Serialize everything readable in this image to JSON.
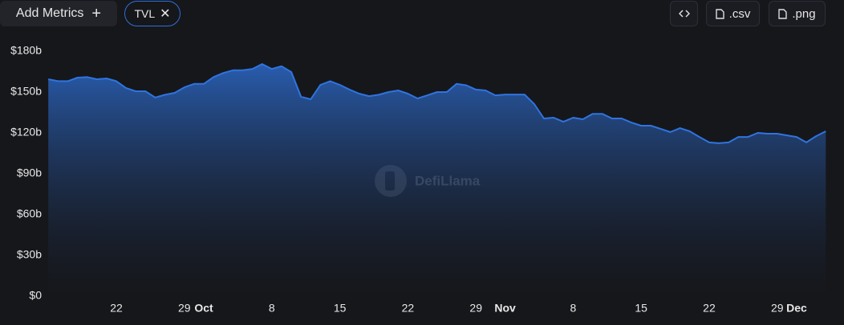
{
  "toolbar": {
    "add_metrics": "Add Metrics",
    "metric_chip": "TVL",
    "csv": ".csv",
    "png": ".png"
  },
  "watermark": "DefiLlama",
  "chart_data": {
    "type": "area",
    "categories": [
      null,
      null,
      null,
      null,
      null,
      null,
      null,
      "22",
      null,
      null,
      null,
      null,
      null,
      null,
      "29",
      null,
      "Oct",
      null,
      null,
      null,
      null,
      null,
      null,
      "8",
      null,
      null,
      null,
      null,
      null,
      null,
      "15",
      null,
      null,
      null,
      null,
      null,
      null,
      "22",
      null,
      null,
      null,
      null,
      null,
      null,
      "29",
      null,
      null,
      "Nov",
      null,
      null,
      null,
      null,
      null,
      null,
      "8",
      null,
      null,
      null,
      null,
      null,
      null,
      "15",
      null,
      null,
      null,
      null,
      null,
      null,
      "22",
      null,
      null,
      null,
      null,
      null,
      null,
      "29",
      null,
      "Dec",
      null,
      null,
      null
    ],
    "series": [
      {
        "name": "TVL",
        "color": "#2f74e0",
        "values": [
          159.4,
          158,
          158,
          160.6,
          161,
          159.4,
          160,
          158,
          153,
          150.6,
          150.6,
          146,
          148,
          149.4,
          153.5,
          156,
          156,
          161,
          164,
          166,
          166,
          167,
          170.6,
          167,
          169,
          164.7,
          146.5,
          144.7,
          155.3,
          158,
          155.3,
          151.8,
          148.8,
          147,
          148,
          150,
          151.2,
          148.8,
          145.3,
          147.6,
          150,
          150,
          156,
          155,
          151.8,
          151.2,
          147.6,
          148.2,
          148.2,
          148.2,
          141.2,
          130.6,
          131.2,
          128.2,
          131.2,
          130,
          134,
          134,
          130.6,
          130.6,
          127.6,
          125.3,
          125.3,
          123,
          120.6,
          123.5,
          121.2,
          117,
          113,
          112.4,
          113,
          117,
          117,
          120,
          119.4,
          119.4,
          118.2,
          117,
          113,
          117.6,
          121.2
        ]
      }
    ],
    "ylim": [
      0,
      180
    ],
    "yticks": [
      {
        "value": 0,
        "label": "$0"
      },
      {
        "value": 30,
        "label": "$30b"
      },
      {
        "value": 60,
        "label": "$60b"
      },
      {
        "value": 90,
        "label": "$90b"
      },
      {
        "value": 120,
        "label": "$120b"
      },
      {
        "value": 150,
        "label": "$150b"
      },
      {
        "value": 180,
        "label": "$180b"
      }
    ]
  }
}
